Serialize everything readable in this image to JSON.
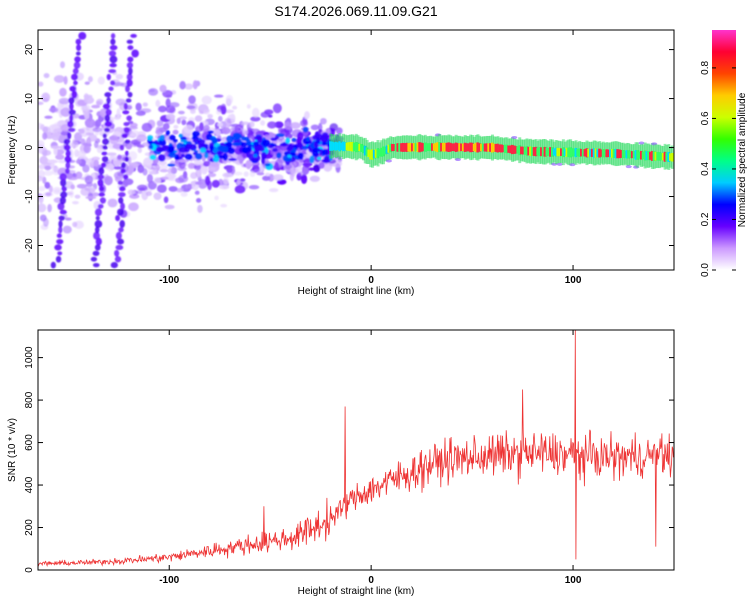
{
  "chart_data": [
    {
      "type": "heatmap",
      "title": "S174.2026.069.11.09.G21",
      "xlabel": "Height of straight line (km)",
      "ylabel": "Frequency (Hz)",
      "xlim": [
        -165,
        150
      ],
      "ylim": [
        -25,
        24
      ],
      "xticks": [
        -100,
        0,
        100
      ],
      "yticks": [
        -20,
        -10,
        0,
        10,
        20
      ],
      "colorbar": {
        "label": "Normalized spectral amplitude",
        "range": [
          0,
          0.95
        ],
        "ticks": [
          0.0,
          0.2,
          0.4,
          0.6,
          0.8
        ],
        "stops": [
          "#ffffff",
          "#cc99ff",
          "#6600ff",
          "#0000ff",
          "#00ccff",
          "#00ff88",
          "#33ff00",
          "#ccff00",
          "#ffcc00",
          "#ff4400",
          "#ff0033",
          "#ff33cc"
        ]
      },
      "ridge": {
        "description": "dominant frequency line vs height",
        "x": [
          -20,
          -10,
          -5,
          0,
          5,
          10,
          30,
          60,
          80,
          100,
          120,
          150
        ],
        "y": [
          0.3,
          0.2,
          0.0,
          -1.5,
          -1.0,
          0.0,
          0.1,
          0.0,
          -0.8,
          -1.0,
          -1.2,
          -2.0
        ]
      },
      "colors": {
        "frame": "#000000",
        "background": "#ffffff"
      }
    },
    {
      "type": "line",
      "xlabel": "Height of straight line (km)",
      "ylabel": "SNR (10 * v/v)",
      "xlim": [
        -165,
        150
      ],
      "ylim": [
        0,
        1130
      ],
      "xticks": [
        -100,
        0,
        100
      ],
      "yticks": [
        0,
        200,
        400,
        600,
        800,
        1000
      ],
      "color": "#ee3333",
      "trend": {
        "x": [
          -165,
          -140,
          -120,
          -100,
          -80,
          -60,
          -40,
          -30,
          -20,
          -10,
          0,
          10,
          20,
          30,
          40,
          60,
          80,
          100,
          120,
          150
        ],
        "y": [
          30,
          35,
          45,
          60,
          90,
          120,
          150,
          190,
          240,
          330,
          380,
          420,
          460,
          500,
          520,
          540,
          550,
          540,
          530,
          540
        ]
      },
      "spikes": [
        {
          "x": -53,
          "y": 300
        },
        {
          "x": -13,
          "y": 770
        },
        {
          "x": 75,
          "y": 850
        },
        {
          "x": 101,
          "y": 1130
        },
        {
          "x": 101.5,
          "y": 50
        },
        {
          "x": 141,
          "y": 110
        }
      ]
    }
  ]
}
